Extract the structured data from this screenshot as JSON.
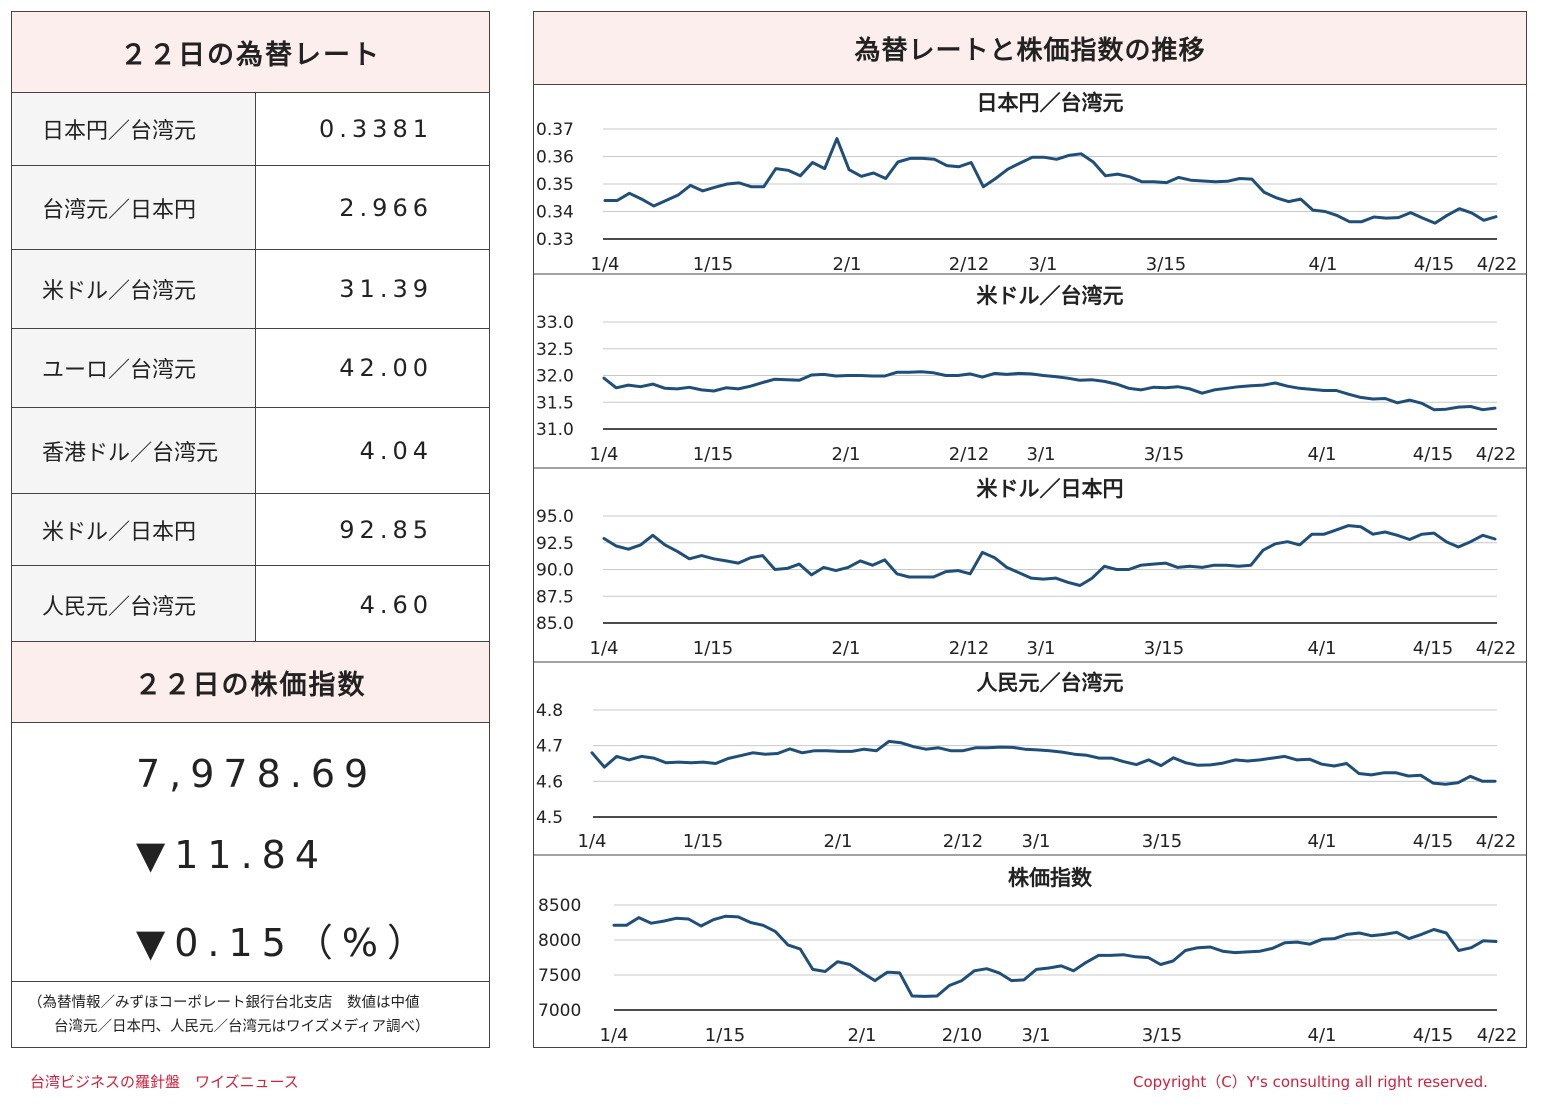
{
  "left": {
    "rates_title": "２２日の為替レート",
    "rates": [
      {
        "label": "日本円／台湾元",
        "value": "0.3381"
      },
      {
        "label": "台湾元／日本円",
        "value": "2.966"
      },
      {
        "label": "米ドル／台湾元",
        "value": "31.39"
      },
      {
        "label": "ユーロ／台湾元",
        "value": "42.00"
      },
      {
        "label": "香港ドル／台湾元",
        "value": "4.04"
      },
      {
        "label": "米ドル／日本円",
        "value": "92.85"
      },
      {
        "label": "人民元／台湾元",
        "value": "4.60"
      }
    ],
    "stock_title": "２２日の株価指数",
    "stock_value": "7,978.69",
    "stock_change": "▼11.84",
    "stock_change_pct": "▼0.15（%）",
    "note_line1": "（為替情報／みずほコーポレート銀行台北支店　数値は中値",
    "note_line2": "台湾元／日本円、人民元／台湾元はワイズメディア調べ）"
  },
  "right": {
    "title": "為替レートと株価指数の推移"
  },
  "footer": {
    "left": "台湾ビジネスの羅針盤　ワイズニュース",
    "right": "Copyright（C）Y's consulting all right reserved."
  },
  "colors": {
    "line": "#1f4e79",
    "header_bg": "#fdeeee",
    "footer_text": "#d0213d"
  },
  "chart_data": [
    {
      "type": "line",
      "title": "日本円／台湾元",
      "ylim": [
        0.33,
        0.37
      ],
      "yticks": [
        "0.37",
        "0.36",
        "0.35",
        "0.34",
        "0.33"
      ],
      "xtick_labels": [
        "1/4",
        "1/15",
        "2/1",
        "2/12",
        "3/1",
        "3/15",
        "4/1",
        "4/15",
        "4/22"
      ],
      "values": [
        0.344,
        0.344,
        0.3466,
        0.3445,
        0.342,
        0.344,
        0.346,
        0.3495,
        0.3475,
        0.3488,
        0.35,
        0.3504,
        0.349,
        0.349,
        0.3556,
        0.355,
        0.353,
        0.3578,
        0.3556,
        0.3665,
        0.3552,
        0.3528,
        0.354,
        0.352,
        0.358,
        0.3593,
        0.3593,
        0.359,
        0.3567,
        0.3563,
        0.3578,
        0.349,
        0.352,
        0.3554,
        0.3576,
        0.3597,
        0.3597,
        0.359,
        0.3604,
        0.361,
        0.358,
        0.353,
        0.3536,
        0.3526,
        0.3508,
        0.3508,
        0.3505,
        0.3524,
        0.3514,
        0.3511,
        0.3508,
        0.351,
        0.352,
        0.3518,
        0.347,
        0.345,
        0.3436,
        0.3445,
        0.3405,
        0.34,
        0.3385,
        0.3363,
        0.3363,
        0.338,
        0.3376,
        0.3378,
        0.3396,
        0.3376,
        0.3358,
        0.3386,
        0.341,
        0.3395,
        0.3368,
        0.3381
      ]
    },
    {
      "type": "line",
      "title": "米ドル／台湾元",
      "ylim": [
        31.0,
        33.0
      ],
      "yticks": [
        "33.0",
        "32.5",
        "32.0",
        "31.5",
        "31.0"
      ],
      "xtick_labels": [
        "1/4",
        "1/15",
        "2/1",
        "2/12",
        "3/1",
        "3/15",
        "4/1",
        "4/15",
        "4/22"
      ],
      "values": [
        31.95,
        31.77,
        31.82,
        31.79,
        31.84,
        31.76,
        31.75,
        31.78,
        31.73,
        31.71,
        31.77,
        31.75,
        31.8,
        31.87,
        31.93,
        31.92,
        31.91,
        32.01,
        32.02,
        31.99,
        32.0,
        32.0,
        31.99,
        31.99,
        32.06,
        32.06,
        32.07,
        32.05,
        32.0,
        32.0,
        32.03,
        31.97,
        32.04,
        32.02,
        32.04,
        32.03,
        32.0,
        31.98,
        31.95,
        31.91,
        31.92,
        31.89,
        31.84,
        31.76,
        31.73,
        31.78,
        31.77,
        31.79,
        31.75,
        31.67,
        31.73,
        31.76,
        31.79,
        31.81,
        31.82,
        31.86,
        31.8,
        31.76,
        31.74,
        31.72,
        31.72,
        31.65,
        31.59,
        31.56,
        31.57,
        31.49,
        31.54,
        31.48,
        31.36,
        31.37,
        31.41,
        31.42,
        31.36,
        31.39
      ]
    },
    {
      "type": "line",
      "title": "米ドル／日本円",
      "ylim": [
        85.0,
        95.0
      ],
      "yticks": [
        "95.0",
        "92.5",
        "90.0",
        "87.5",
        "85.0"
      ],
      "xtick_labels": [
        "1/4",
        "1/15",
        "2/1",
        "2/12",
        "3/1",
        "3/15",
        "4/1",
        "4/15",
        "4/22"
      ],
      "values": [
        92.9,
        92.2,
        91.9,
        92.3,
        93.2,
        92.3,
        91.7,
        91.0,
        91.3,
        91.0,
        90.8,
        90.6,
        91.1,
        91.3,
        90.0,
        90.1,
        90.5,
        89.5,
        90.2,
        89.9,
        90.2,
        90.8,
        90.4,
        90.9,
        89.6,
        89.3,
        89.3,
        89.3,
        89.8,
        89.9,
        89.6,
        91.6,
        91.1,
        90.2,
        89.7,
        89.2,
        89.1,
        89.2,
        88.8,
        88.5,
        89.2,
        90.3,
        90.0,
        90.0,
        90.4,
        90.5,
        90.6,
        90.2,
        90.3,
        90.2,
        90.4,
        90.4,
        90.3,
        90.4,
        91.8,
        92.4,
        92.6,
        92.3,
        93.3,
        93.3,
        93.7,
        94.1,
        94.0,
        93.3,
        93.5,
        93.2,
        92.8,
        93.3,
        93.4,
        92.6,
        92.1,
        92.6,
        93.2,
        92.85
      ]
    },
    {
      "type": "line",
      "title": "人民元／台湾元",
      "ylim": [
        4.5,
        4.8
      ],
      "yticks": [
        "4.8",
        "4.7",
        "4.6",
        "4.5"
      ],
      "xtick_labels": [
        "1/4",
        "1/15",
        "2/1",
        "2/12",
        "3/1",
        "3/15",
        "4/1",
        "4/15",
        "4/22"
      ],
      "values": [
        4.68,
        4.64,
        4.67,
        4.66,
        4.67,
        4.665,
        4.652,
        4.654,
        4.652,
        4.654,
        4.65,
        4.664,
        4.672,
        4.68,
        4.676,
        4.678,
        4.691,
        4.68,
        4.686,
        4.686,
        4.684,
        4.684,
        4.69,
        4.686,
        4.712,
        4.708,
        4.697,
        4.69,
        4.694,
        4.686,
        4.686,
        4.694,
        4.694,
        4.696,
        4.695,
        4.69,
        4.688,
        4.686,
        4.682,
        4.676,
        4.673,
        4.665,
        4.665,
        4.655,
        4.647,
        4.66,
        4.644,
        4.666,
        4.652,
        4.645,
        4.646,
        4.651,
        4.66,
        4.657,
        4.66,
        4.665,
        4.67,
        4.66,
        4.662,
        4.648,
        4.643,
        4.65,
        4.622,
        4.618,
        4.624,
        4.624,
        4.615,
        4.617,
        4.595,
        4.592,
        4.596,
        4.614,
        4.6,
        4.6
      ]
    },
    {
      "type": "line",
      "title": "株価指数",
      "ylim": [
        7000,
        8500
      ],
      "yticks": [
        "8500",
        "8000",
        "7500",
        "7000"
      ],
      "xtick_labels": [
        "1/4",
        "1/15",
        "2/1",
        "2/10",
        "3/1",
        "3/15",
        "4/1",
        "4/15",
        "4/22"
      ],
      "values": [
        8210,
        8210,
        8320,
        8240,
        8270,
        8310,
        8300,
        8200,
        8290,
        8340,
        8330,
        8250,
        8210,
        8120,
        7930,
        7870,
        7580,
        7550,
        7690,
        7650,
        7530,
        7420,
        7540,
        7530,
        7200,
        7195,
        7200,
        7350,
        7420,
        7560,
        7590,
        7530,
        7420,
        7430,
        7580,
        7600,
        7630,
        7560,
        7680,
        7780,
        7780,
        7790,
        7760,
        7750,
        7650,
        7700,
        7850,
        7890,
        7900,
        7840,
        7820,
        7830,
        7840,
        7880,
        7960,
        7970,
        7940,
        8010,
        8020,
        8080,
        8100,
        8060,
        8080,
        8110,
        8020,
        8080,
        8150,
        8100,
        7850,
        7890,
        7990,
        7978.69
      ]
    }
  ]
}
